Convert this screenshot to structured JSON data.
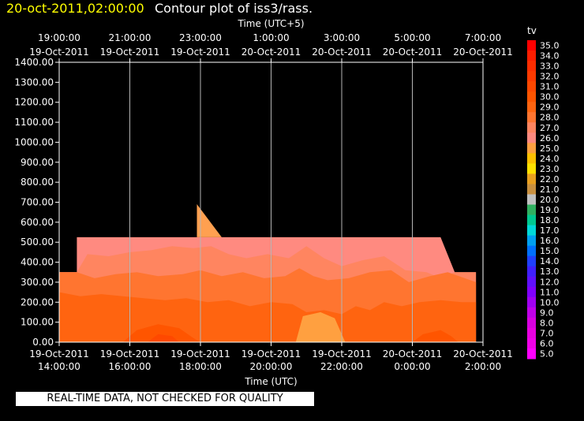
{
  "header": {
    "date_time": "20-oct-2011,02:00:00",
    "title": "Contour plot of iss3/rass."
  },
  "quality_notice": "REAL-TIME DATA, NOT CHECKED FOR QUALITY",
  "chart_data": {
    "type": "heatmap",
    "variable": "tv",
    "top_axis": {
      "label": "Time (UTC+5)",
      "ticks": [
        {
          "time": "19:00:00",
          "date": "19-Oct-2011"
        },
        {
          "time": "21:00:00",
          "date": "19-Oct-2011"
        },
        {
          "time": "23:00:00",
          "date": "19-Oct-2011"
        },
        {
          "time": "1:00:00",
          "date": "20-Oct-2011"
        },
        {
          "time": "3:00:00",
          "date": "20-Oct-2011"
        },
        {
          "time": "5:00:00",
          "date": "20-Oct-2011"
        },
        {
          "time": "7:00:00",
          "date": "20-Oct-2011"
        }
      ]
    },
    "bottom_axis": {
      "label": "Time (UTC)",
      "ticks": [
        {
          "date": "19-Oct-2011",
          "time": "14:00:00"
        },
        {
          "date": "19-Oct-2011",
          "time": "16:00:00"
        },
        {
          "date": "19-Oct-2011",
          "time": "18:00:00"
        },
        {
          "date": "19-Oct-2011",
          "time": "20:00:00"
        },
        {
          "date": "19-Oct-2011",
          "time": "22:00:00"
        },
        {
          "date": "20-Oct-2011",
          "time": "0:00:00"
        },
        {
          "date": "20-Oct-2011",
          "time": "2:00:00"
        }
      ]
    },
    "x_range_hours_utc": [
      14.0,
      26.0
    ],
    "y_axis": {
      "ticks": [
        "0.00",
        "100.00",
        "200.00",
        "300.00",
        "400.00",
        "500.00",
        "600.00",
        "700.00",
        "800.00",
        "900.00",
        "1000.00",
        "1100.00",
        "1200.00",
        "1300.00",
        "1400.00"
      ],
      "ylim": [
        0,
        1400
      ]
    },
    "grid": "vertical lines at bottom-axis ticks",
    "colorbar": {
      "title": "tv",
      "range": [
        5.0,
        35.0
      ],
      "levels": [
        {
          "label": "35.0",
          "color": "#ff0000"
        },
        {
          "label": "34.0",
          "color": "#ff1e00"
        },
        {
          "label": "33.0",
          "color": "#ff2d00"
        },
        {
          "label": "32.0",
          "color": "#ff3a00"
        },
        {
          "label": "31.0",
          "color": "#ff4800"
        },
        {
          "label": "30.0",
          "color": "#ff5500"
        },
        {
          "label": "29.0",
          "color": "#ff6410"
        },
        {
          "label": "28.0",
          "color": "#ff7530"
        },
        {
          "label": "27.0",
          "color": "#ff8560"
        },
        {
          "label": "26.0",
          "color": "#ff8a80"
        },
        {
          "label": "25.0",
          "color": "#ffa040"
        },
        {
          "label": "24.0",
          "color": "#ffc000"
        },
        {
          "label": "23.0",
          "color": "#ffe000"
        },
        {
          "label": "22.0",
          "color": "#e8a020"
        },
        {
          "label": "21.0",
          "color": "#c89040"
        },
        {
          "label": "20.0",
          "color": "#c0c0c0"
        },
        {
          "label": "19.0",
          "color": "#30b060"
        },
        {
          "label": "18.0",
          "color": "#00c890"
        },
        {
          "label": "17.0",
          "color": "#00d8d8"
        },
        {
          "label": "16.0",
          "color": "#00a0f0"
        },
        {
          "label": "15.0",
          "color": "#0070ff"
        },
        {
          "label": "14.0",
          "color": "#2040ff"
        },
        {
          "label": "13.0",
          "color": "#4020ff"
        },
        {
          "label": "12.0",
          "color": "#6010ff"
        },
        {
          "label": "11.0",
          "color": "#8000ff"
        },
        {
          "label": "10.0",
          "color": "#a000f0"
        },
        {
          "label": "9.0",
          "color": "#c000e8"
        },
        {
          "label": "8.0",
          "color": "#d800e0"
        },
        {
          "label": "7.0",
          "color": "#e800e0"
        },
        {
          "label": "6.0",
          "color": "#f000e8"
        },
        {
          "label": "5.0",
          "color": "#ff00ff"
        }
      ]
    },
    "contour_bands": [
      {
        "level": 26.0,
        "color": "#ff8a80",
        "points": [
          [
            14.0,
            0
          ],
          [
            14.0,
            350
          ],
          [
            14.5,
            350
          ],
          [
            14.5,
            525
          ],
          [
            24.8,
            525
          ],
          [
            25.2,
            350
          ],
          [
            25.8,
            350
          ],
          [
            25.8,
            0
          ]
        ]
      },
      {
        "level": 26.0,
        "color": "#ffa050",
        "points": [
          [
            17.9,
            525
          ],
          [
            17.9,
            690
          ],
          [
            18.6,
            525
          ]
        ]
      },
      {
        "level": 27.0,
        "color": "#ff8560",
        "points": [
          [
            14.0,
            0
          ],
          [
            14.0,
            350
          ],
          [
            14.5,
            350
          ],
          [
            14.8,
            440
          ],
          [
            15.4,
            430
          ],
          [
            16.0,
            450
          ],
          [
            16.6,
            460
          ],
          [
            17.2,
            480
          ],
          [
            17.8,
            470
          ],
          [
            18.3,
            480
          ],
          [
            18.8,
            440
          ],
          [
            19.3,
            420
          ],
          [
            19.9,
            440
          ],
          [
            20.5,
            420
          ],
          [
            21.0,
            480
          ],
          [
            21.5,
            420
          ],
          [
            22.0,
            380
          ],
          [
            22.6,
            410
          ],
          [
            23.2,
            430
          ],
          [
            23.8,
            360
          ],
          [
            24.4,
            350
          ],
          [
            24.8,
            320
          ],
          [
            25.2,
            350
          ],
          [
            25.8,
            350
          ],
          [
            25.8,
            0
          ]
        ]
      },
      {
        "level": 28.0,
        "color": "#ff7530",
        "points": [
          [
            14.0,
            0
          ],
          [
            14.0,
            350
          ],
          [
            14.5,
            350
          ],
          [
            15.0,
            320
          ],
          [
            15.6,
            340
          ],
          [
            16.2,
            350
          ],
          [
            16.8,
            330
          ],
          [
            17.5,
            340
          ],
          [
            18.0,
            360
          ],
          [
            18.6,
            330
          ],
          [
            19.2,
            350
          ],
          [
            19.8,
            320
          ],
          [
            20.4,
            330
          ],
          [
            20.8,
            370
          ],
          [
            21.2,
            330
          ],
          [
            21.6,
            310
          ],
          [
            22.2,
            320
          ],
          [
            22.8,
            350
          ],
          [
            23.4,
            360
          ],
          [
            23.9,
            300
          ],
          [
            24.5,
            330
          ],
          [
            25.0,
            350
          ],
          [
            25.8,
            300
          ],
          [
            25.8,
            0
          ]
        ]
      },
      {
        "level": 29.0,
        "color": "#ff6410",
        "points": [
          [
            14.0,
            0
          ],
          [
            14.0,
            250
          ],
          [
            14.6,
            230
          ],
          [
            15.2,
            240
          ],
          [
            15.8,
            230
          ],
          [
            16.4,
            220
          ],
          [
            17.0,
            210
          ],
          [
            17.6,
            220
          ],
          [
            18.2,
            200
          ],
          [
            18.8,
            210
          ],
          [
            19.4,
            180
          ],
          [
            20.0,
            200
          ],
          [
            20.6,
            190
          ],
          [
            21.0,
            150
          ],
          [
            21.5,
            160
          ],
          [
            22.0,
            140
          ],
          [
            22.4,
            180
          ],
          [
            22.8,
            160
          ],
          [
            23.2,
            200
          ],
          [
            23.7,
            180
          ],
          [
            24.2,
            200
          ],
          [
            24.8,
            210
          ],
          [
            25.4,
            200
          ],
          [
            25.8,
            200
          ],
          [
            25.8,
            0
          ]
        ]
      },
      {
        "level": 30.0,
        "color": "#ff5500",
        "points": [
          [
            15.8,
            0
          ],
          [
            16.2,
            60
          ],
          [
            16.8,
            90
          ],
          [
            17.4,
            70
          ],
          [
            17.8,
            20
          ],
          [
            18.0,
            0
          ]
        ]
      },
      {
        "level": 30.0,
        "color": "#ff5500",
        "points": [
          [
            24.0,
            0
          ],
          [
            24.3,
            40
          ],
          [
            24.8,
            60
          ],
          [
            25.1,
            30
          ],
          [
            25.3,
            0
          ]
        ]
      },
      {
        "level": 31.0,
        "color": "#ff4800",
        "points": [
          [
            16.5,
            0
          ],
          [
            16.8,
            40
          ],
          [
            17.2,
            30
          ],
          [
            17.4,
            0
          ]
        ]
      },
      {
        "level": 24.0,
        "color": "#ffc000",
        "points": [
          [
            20.9,
            0
          ],
          [
            21.1,
            60
          ],
          [
            21.4,
            90
          ],
          [
            21.7,
            60
          ],
          [
            21.9,
            0
          ]
        ]
      },
      {
        "level": 23.0,
        "color": "#ffe000",
        "points": [
          [
            21.2,
            0
          ],
          [
            21.35,
            30
          ],
          [
            21.5,
            25
          ],
          [
            21.6,
            0
          ]
        ]
      },
      {
        "level": 25.0,
        "color": "#ffa040",
        "points": [
          [
            20.7,
            0
          ],
          [
            20.9,
            130
          ],
          [
            21.4,
            150
          ],
          [
            21.8,
            120
          ],
          [
            22.1,
            0
          ]
        ]
      }
    ]
  }
}
